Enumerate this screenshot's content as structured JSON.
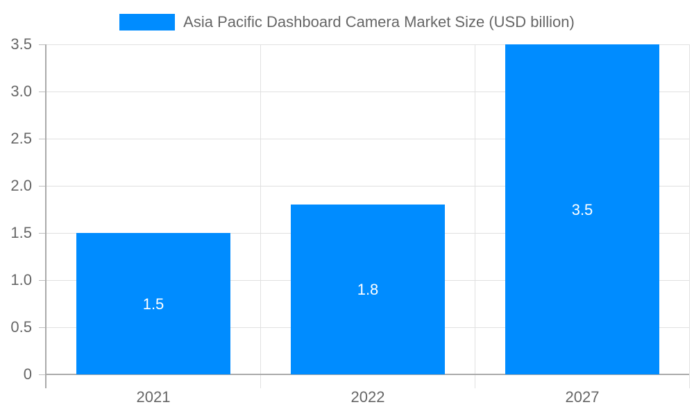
{
  "chart_data": {
    "type": "bar",
    "title": "",
    "categories": [
      "2021",
      "2022",
      "2027"
    ],
    "values": [
      1.5,
      1.8,
      3.5
    ],
    "series": [
      {
        "name": "Asia Pacific Dashboard Camera Market Size (USD billion)",
        "values": [
          1.5,
          1.8,
          3.5
        ],
        "color": "#008cff"
      }
    ],
    "xlabel": "",
    "ylabel": "",
    "ylim": [
      0,
      3.5
    ],
    "yticks": [
      "0",
      "0.5",
      "1.0",
      "1.5",
      "2.0",
      "2.5",
      "3.0",
      "3.5"
    ],
    "data_labels": [
      "1.5",
      "1.8",
      "3.5"
    ],
    "grid": true,
    "legend_position": "top"
  },
  "legend": {
    "label": "Asia Pacific Dashboard Camera Market Size (USD billion)",
    "color": "#008cff"
  }
}
